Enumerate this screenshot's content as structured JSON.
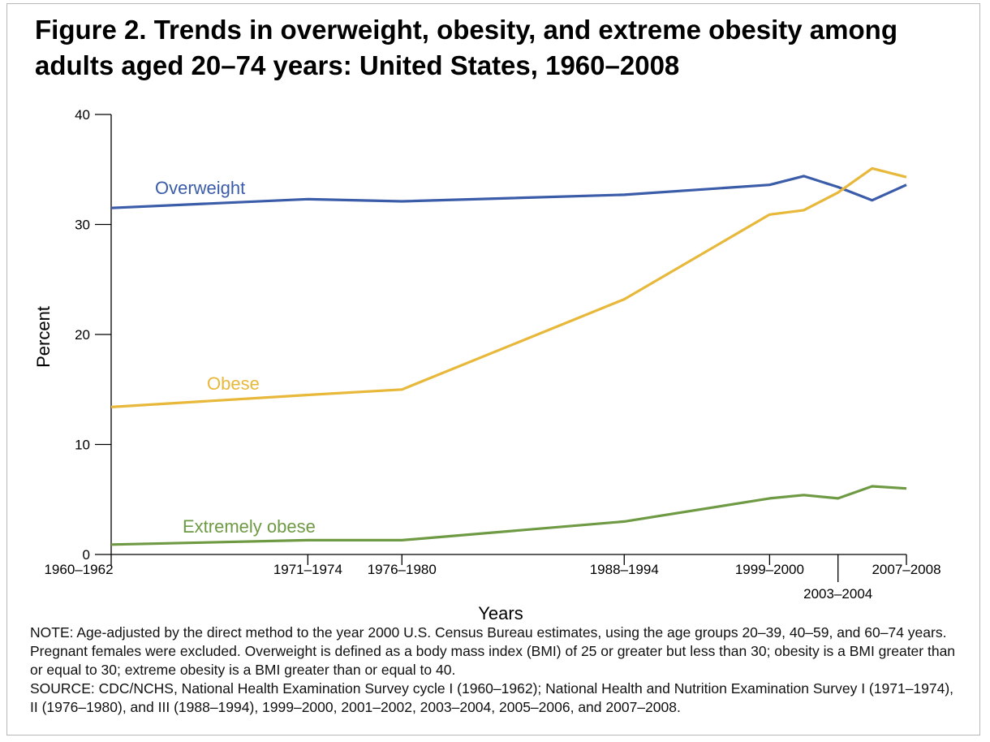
{
  "chart_data": {
    "type": "line",
    "title": "Figure 2. Trends in overweight, obesity, and extreme obesity among adults aged 20–74 years: United States, 1960–2008",
    "xlabel": "Years",
    "ylabel": "Percent",
    "ylim": [
      0,
      40
    ],
    "yticks": [
      0,
      10,
      20,
      30,
      40
    ],
    "x": [
      1961,
      1972.5,
      1978,
      1991,
      1999.5,
      2001.5,
      2003.5,
      2005.5,
      2007.5
    ],
    "x_tick_labels": [
      {
        "x": 1961,
        "label": "1960–1962"
      },
      {
        "x": 1972.5,
        "label": "1971–1974"
      },
      {
        "x": 1978,
        "label": "1976–1980"
      },
      {
        "x": 1991,
        "label": "1988–1994"
      },
      {
        "x": 1999.5,
        "label": "1999–2000"
      },
      {
        "x": 2003.5,
        "label": "2003–2004"
      },
      {
        "x": 2007.5,
        "label": "2007–2008"
      }
    ],
    "grid": false,
    "series": [
      {
        "name": "Overweight",
        "color": "#3b5ca8",
        "values": [
          31.5,
          32.3,
          32.1,
          32.7,
          33.6,
          34.4,
          33.4,
          32.2,
          33.6
        ]
      },
      {
        "name": "Obese",
        "color": "#e8b83a",
        "values": [
          13.4,
          14.5,
          15.0,
          23.2,
          30.9,
          31.3,
          32.9,
          35.1,
          34.3
        ]
      },
      {
        "name": "Extremely obese",
        "color": "#6f9a44",
        "values": [
          0.9,
          1.3,
          1.3,
          3.0,
          5.1,
          5.4,
          5.1,
          6.2,
          6.0
        ]
      }
    ]
  },
  "notes": {
    "note": "NOTE: Age-adjusted by the direct method to the year 2000 U.S. Census Bureau estimates, using the age groups 20–39, 40–59, and 60–74 years. Pregnant females were excluded. Overweight is defined as a body mass index (BMI) of 25 or greater but less than 30; obesity is a BMI greater than or equal to 30; extreme obesity is a BMI greater than or equal to 40.",
    "source": "SOURCE: CDC/NCHS, National Health Examination Survey cycle I (1960–1962); National Health and Nutrition Examination Survey I (1971–1974), II (1976–1980), and III (1988–1994), 1999–2000, 2001–2002, 2003–2004, 2005–2006, and 2007–2008."
  }
}
